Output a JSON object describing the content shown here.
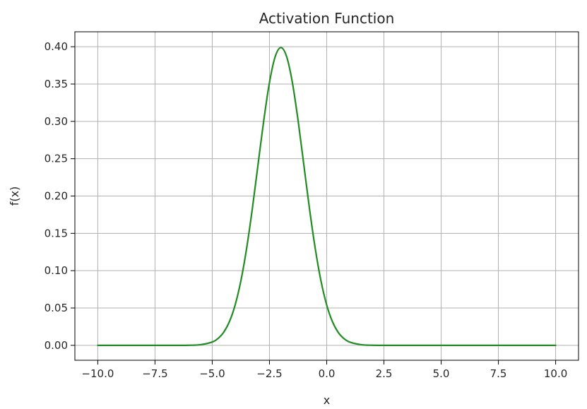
{
  "chart_data": {
    "type": "line",
    "title": "Activation Function",
    "xlabel": "x",
    "ylabel": "f(x)",
    "xlim": [
      -11,
      11
    ],
    "ylim": [
      -0.02,
      0.42
    ],
    "grid": true,
    "x_ticks": [
      -10.0,
      -7.5,
      -5.0,
      -2.5,
      0.0,
      2.5,
      5.0,
      7.5,
      10.0
    ],
    "x_tick_labels": [
      "−10.0",
      "−7.5",
      "−5.0",
      "−2.5",
      "0.0",
      "2.5",
      "5.0",
      "7.5",
      "10.0"
    ],
    "y_ticks": [
      0.0,
      0.05,
      0.1,
      0.15,
      0.2,
      0.25,
      0.3,
      0.35,
      0.4
    ],
    "y_tick_labels": [
      "0.00",
      "0.05",
      "0.10",
      "0.15",
      "0.20",
      "0.25",
      "0.30",
      "0.35",
      "0.40"
    ],
    "series": [
      {
        "color": "#228b22",
        "x": [
          -10,
          -7,
          -6,
          -5.5,
          -5,
          -4.75,
          -4.5,
          -4.25,
          -4,
          -3.75,
          -3.5,
          -3.25,
          -3,
          -2.75,
          -2.5,
          -2.25,
          -2,
          -1.75,
          -1.5,
          -1.25,
          -1,
          -0.75,
          -0.5,
          -0.25,
          0,
          0.25,
          0.5,
          0.75,
          1,
          1.5,
          2,
          3,
          5,
          7.5,
          10
        ],
        "y": [
          0.0,
          0.0,
          0.0001,
          0.0009,
          0.0044,
          0.0091,
          0.0175,
          0.0317,
          0.054,
          0.0863,
          0.1295,
          0.1826,
          0.242,
          0.3011,
          0.3521,
          0.3867,
          0.3989,
          0.3867,
          0.3521,
          0.3011,
          0.242,
          0.1826,
          0.1295,
          0.0863,
          0.054,
          0.0317,
          0.0175,
          0.0091,
          0.0044,
          0.0009,
          0.0001,
          0.0,
          0.0,
          0.0,
          0.0
        ]
      }
    ]
  }
}
